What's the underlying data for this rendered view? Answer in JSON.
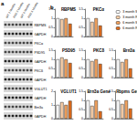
{
  "panels": {
    "a": "a",
    "b": "b"
  },
  "blot": {
    "lanes": [
      "WT 3 Months",
      "R6/2 3 Months",
      "WT 6 Months",
      "R6/2 6 Months"
    ],
    "rows": [
      "RBPMS",
      "GAPDH",
      "PKCα",
      "PSD95",
      "GAPDH",
      "PKCδ",
      "GAPDH",
      "VGLUT1",
      "GAPDH",
      "Brn3a",
      "GAPDH"
    ]
  },
  "chart_data": [
    {
      "type": "bar",
      "title": "RBPMS",
      "categories": [
        null
      ],
      "legend": "right",
      "tick_labels": "y",
      "series": [
        {
          "name": "3 month WT",
          "color": "#ffffff",
          "values": [
            1.0
          ]
        },
        {
          "name": "3 month R6/2",
          "color": "#f9cfa8",
          "values": [
            0.95
          ]
        },
        {
          "name": "6 month WT",
          "color": "#f2a25e",
          "values": [
            1.0
          ]
        },
        {
          "name": "6 month R6/2",
          "color": "#e06c1c",
          "values": [
            0.7
          ]
        }
      ],
      "ylim": [
        0,
        1.5
      ],
      "yticks": [
        0,
        0.5,
        1,
        1.5
      ]
    },
    {
      "type": "bar",
      "title": "PKCα",
      "categories": [
        null
      ],
      "tick_labels": "y",
      "series": [
        {
          "name": "3 month WT",
          "color": "#ffffff",
          "values": [
            1.0
          ]
        },
        {
          "name": "3 month R6/2",
          "color": "#f9cfa8",
          "values": [
            0.8
          ]
        },
        {
          "name": "6 month WT",
          "color": "#f2a25e",
          "values": [
            1.0
          ]
        },
        {
          "name": "6 month R6/2",
          "color": "#e06c1c",
          "values": [
            0.6
          ]
        }
      ],
      "ylim": [
        0,
        1.5
      ],
      "yticks": [
        0,
        0.5,
        1,
        1.5
      ]
    },
    {
      "type": "bar",
      "title": "PSD95",
      "categories": [
        null
      ],
      "tick_labels": "y",
      "series": [
        {
          "name": "3 month WT",
          "color": "#ffffff",
          "values": [
            1.0
          ]
        },
        {
          "name": "3 month R6/2",
          "color": "#f9cfa8",
          "values": [
            1.1
          ]
        },
        {
          "name": "6 month WT",
          "color": "#f2a25e",
          "values": [
            1.0
          ]
        },
        {
          "name": "6 month R6/2",
          "color": "#e06c1c",
          "values": [
            0.8
          ]
        }
      ],
      "ylim": [
        0,
        1.5
      ],
      "yticks": [
        0,
        0.5,
        1,
        1.5
      ]
    },
    {
      "type": "bar",
      "title": "PKCδ",
      "categories": [
        null
      ],
      "tick_labels": "y",
      "series": [
        {
          "name": "3 month WT",
          "color": "#ffffff",
          "values": [
            1.0
          ]
        },
        {
          "name": "3 month R6/2",
          "color": "#f9cfa8",
          "values": [
            0.9
          ]
        },
        {
          "name": "6 month WT",
          "color": "#f2a25e",
          "values": [
            1.0
          ]
        },
        {
          "name": "6 month R6/2",
          "color": "#e06c1c",
          "values": [
            0.75
          ]
        }
      ],
      "ylim": [
        0,
        1.5
      ],
      "yticks": [
        0,
        0.5,
        1,
        1.5
      ]
    },
    {
      "type": "bar",
      "title": "Brn3a",
      "categories": [
        null
      ],
      "tick_labels": "y",
      "series": [
        {
          "name": "3 month WT",
          "color": "#ffffff",
          "values": [
            1.0
          ]
        },
        {
          "name": "3 month R6/2",
          "color": "#f9cfa8",
          "values": [
            0.85
          ]
        },
        {
          "name": "6 month WT",
          "color": "#f2a25e",
          "values": [
            1.0
          ]
        },
        {
          "name": "6 month R6/2",
          "color": "#e06c1c",
          "values": [
            0.5
          ]
        }
      ],
      "ylim": [
        0,
        1.5
      ],
      "yticks": [
        0,
        0.5,
        1,
        1.5
      ]
    },
    {
      "type": "bar",
      "title": "VGLUT1",
      "categories": [
        null
      ],
      "tick_labels": "y",
      "series": [
        {
          "name": "3 month WT",
          "color": "#ffffff",
          "values": [
            1.0
          ]
        },
        {
          "name": "3 month R6/2",
          "color": "#f9cfa8",
          "values": [
            1.2
          ]
        },
        {
          "name": "6 month WT",
          "color": "#f2a25e",
          "values": [
            1.0
          ]
        },
        {
          "name": "6 month R6/2",
          "color": "#e06c1c",
          "values": [
            1.3
          ]
        }
      ],
      "ylim": [
        0,
        2
      ],
      "yticks": [
        0,
        1,
        2
      ]
    },
    {
      "type": "bar",
      "title": "Brn3a Gene",
      "categories": [
        null
      ],
      "tick_labels": "y",
      "series": [
        {
          "name": "3 month WT",
          "color": "#ffffff",
          "values": [
            1.0
          ]
        },
        {
          "name": "3 month R6/2",
          "color": "#f9cfa8",
          "values": [
            0.7
          ]
        },
        {
          "name": "6 month WT",
          "color": "#f2a25e",
          "values": [
            1.0
          ]
        },
        {
          "name": "6 month R6/2",
          "color": "#e06c1c",
          "values": [
            0.4
          ]
        }
      ],
      "ylim": [
        0,
        1.5
      ],
      "yticks": [
        0,
        0.5,
        1,
        1.5
      ]
    },
    {
      "type": "bar",
      "title": "Rbpms Gene",
      "categories": [
        null
      ],
      "tick_labels": "y",
      "series": [
        {
          "name": "3 month WT",
          "color": "#ffffff",
          "values": [
            1.0
          ]
        },
        {
          "name": "3 month R6/2",
          "color": "#f9cfa8",
          "values": [
            0.8
          ]
        },
        {
          "name": "6 month WT",
          "color": "#f2a25e",
          "values": [
            1.0
          ]
        },
        {
          "name": "6 month R6/2",
          "color": "#e06c1c",
          "values": [
            0.55
          ]
        }
      ],
      "ylim": [
        0,
        1.5
      ],
      "yticks": [
        0,
        0.5,
        1,
        1.5
      ]
    }
  ]
}
